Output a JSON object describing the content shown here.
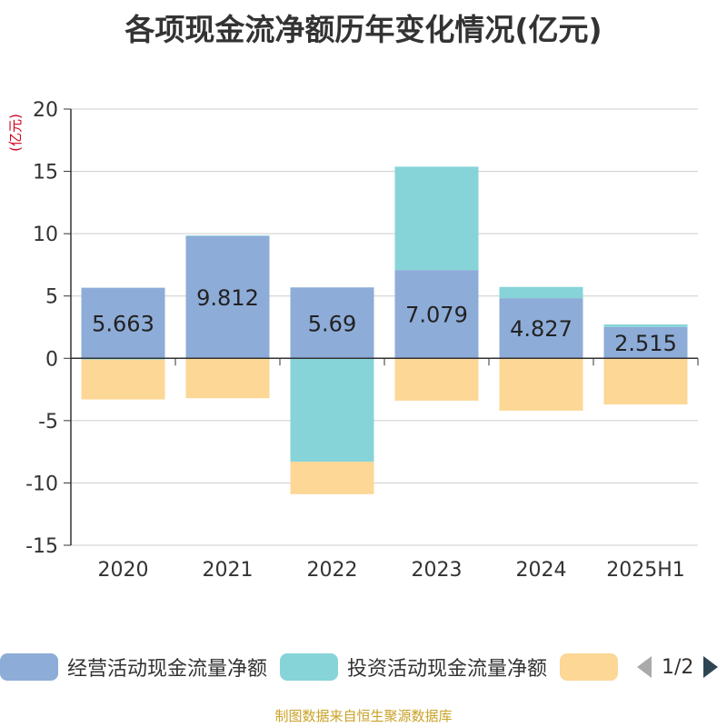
{
  "chart_data": {
    "type": "bar",
    "stacked": true,
    "title": "各项现金流净额历年变化情况(亿元)",
    "ylabel": "(亿元)",
    "ylim": [
      -15,
      20
    ],
    "yticks": [
      -15,
      -10,
      -5,
      0,
      5,
      10,
      15,
      20
    ],
    "grid": true,
    "categories": [
      "2020",
      "2021",
      "2022",
      "2023",
      "2024",
      "2025H1"
    ],
    "series": [
      {
        "name": "经营活动现金流量净额",
        "color": "#8eacd8",
        "values": [
          5.663,
          9.812,
          5.69,
          7.079,
          4.827,
          2.515
        ],
        "labels": [
          "5.663",
          "9.812",
          "5.69",
          "7.079",
          "4.827",
          "2.515"
        ]
      },
      {
        "name": "投资活动现金流量净额",
        "color": "#86d4d8",
        "values": [
          -0.1,
          0.05,
          -8.3,
          8.3,
          0.9,
          0.2
        ]
      },
      {
        "name": "",
        "color": "#fcd795",
        "values": [
          -3.2,
          -3.2,
          -2.6,
          -3.4,
          -4.2,
          -3.7
        ]
      }
    ]
  },
  "legend": {
    "page": "1/2"
  },
  "footer": {
    "source": "制图数据来自恒生聚源数据库"
  }
}
